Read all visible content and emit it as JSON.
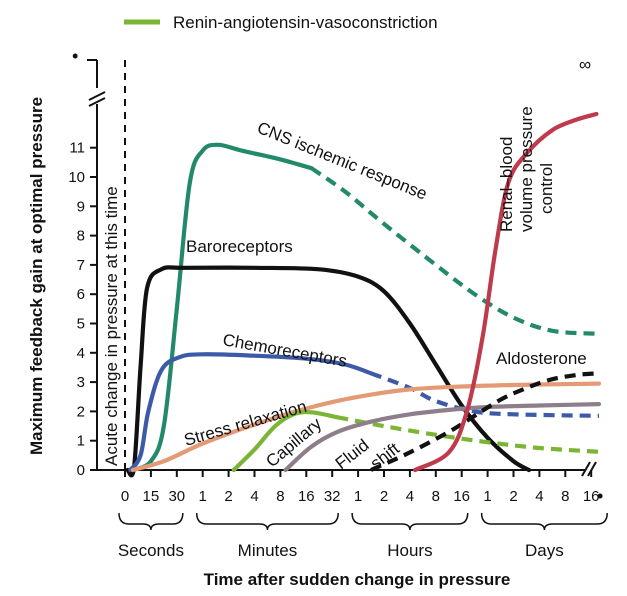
{
  "chart_data": {
    "type": "line",
    "ylabel": "Maximum feedback gain at optimal pressure",
    "xlabel": "Time after sudden change in pressure",
    "y_ticks": [
      "0",
      "1",
      "2",
      "3",
      "4",
      "5",
      "6",
      "7",
      "8",
      "9",
      "10",
      "11"
    ],
    "y_infinity_marker": "•",
    "x_infinity_marker": "•",
    "ylim": [
      0,
      11.5
    ],
    "x_tick_labels": [
      "0",
      "15",
      "30",
      "1",
      "2",
      "4",
      "8",
      "16",
      "32",
      "1",
      "2",
      "4",
      "8",
      "16",
      "1",
      "2",
      "4",
      "8",
      "16"
    ],
    "time_groups": [
      "Seconds",
      "Minutes",
      "Hours",
      "Days"
    ],
    "legend": [
      {
        "name": "Renin-angiotensin-vasoconstriction",
        "color": "#7ab535"
      }
    ],
    "annotations": {
      "acute": "Acute change in pressure at this time",
      "renal_infinity": "∞"
    },
    "series": [
      {
        "name": "CNS ischemic response",
        "color": "#24896a",
        "label": "CNS ischemic response",
        "solid": [
          [
            0.3,
            0
          ],
          [
            1.0,
            0.3
          ],
          [
            1.5,
            1.5
          ],
          [
            2.0,
            5.5
          ],
          [
            2.5,
            9.8
          ],
          [
            3.0,
            10.9
          ],
          [
            3.6,
            11.1
          ],
          [
            4.5,
            10.9
          ],
          [
            6.0,
            10.6
          ],
          [
            7.2,
            10.3
          ]
        ],
        "dashed": [
          [
            7.2,
            10.3
          ],
          [
            8.5,
            9.5
          ],
          [
            10.0,
            8.4
          ],
          [
            12.0,
            7.0
          ],
          [
            13.5,
            6.0
          ],
          [
            15.0,
            5.2
          ],
          [
            16.5,
            4.75
          ],
          [
            18.3,
            4.65
          ]
        ]
      },
      {
        "name": "Baroreceptors",
        "color": "#111111",
        "label": "Baroreceptors",
        "solid": [
          [
            0.1,
            0
          ],
          [
            0.35,
            0.1
          ],
          [
            0.6,
            3.5
          ],
          [
            0.85,
            6.2
          ],
          [
            1.4,
            6.85
          ],
          [
            2.3,
            6.9
          ],
          [
            5.0,
            6.9
          ],
          [
            7.5,
            6.85
          ],
          [
            9.0,
            6.6
          ],
          [
            10.0,
            6.1
          ],
          [
            11.0,
            5.0
          ],
          [
            12.0,
            3.6
          ],
          [
            13.0,
            2.2
          ],
          [
            14.0,
            1.1
          ],
          [
            15.0,
            0.3
          ],
          [
            15.6,
            0
          ]
        ]
      },
      {
        "name": "Chemoreceptors",
        "color": "#3d5aa8",
        "label": "Chemoreceptors",
        "solid": [
          [
            0.2,
            0
          ],
          [
            0.6,
            0.5
          ],
          [
            0.9,
            2.0
          ],
          [
            1.4,
            3.4
          ],
          [
            2.1,
            3.85
          ],
          [
            3.0,
            3.95
          ],
          [
            5.0,
            3.9
          ],
          [
            7.0,
            3.8
          ],
          [
            8.5,
            3.6
          ],
          [
            9.5,
            3.3
          ]
        ],
        "dashed": [
          [
            9.5,
            3.3
          ],
          [
            11.0,
            2.8
          ],
          [
            12.0,
            2.35
          ],
          [
            13.5,
            2.0
          ],
          [
            15.0,
            1.9
          ],
          [
            18.3,
            1.85
          ]
        ]
      },
      {
        "name": "Stress relaxation",
        "color": "#e39a75",
        "label": "Stress relaxation",
        "solid": [
          [
            0.3,
            0
          ],
          [
            1.5,
            0.3
          ],
          [
            3.0,
            0.9
          ],
          [
            5.0,
            1.55
          ],
          [
            7.0,
            2.1
          ],
          [
            9.0,
            2.5
          ],
          [
            11.0,
            2.75
          ],
          [
            13.0,
            2.85
          ],
          [
            15.0,
            2.9
          ],
          [
            18.3,
            2.95
          ]
        ]
      },
      {
        "name": "Capillary fluid shift",
        "color": "#7ab535",
        "label": "Capillary",
        "solid": [
          [
            4.2,
            0
          ],
          [
            5.0,
            0.7
          ],
          [
            5.8,
            1.5
          ],
          [
            6.5,
            1.9
          ],
          [
            7.2,
            1.97
          ],
          [
            8.2,
            1.8
          ]
        ],
        "dashed": [
          [
            8.2,
            1.8
          ],
          [
            10.0,
            1.5
          ],
          [
            12.0,
            1.2
          ],
          [
            14.0,
            0.95
          ],
          [
            16.0,
            0.75
          ],
          [
            18.3,
            0.62
          ]
        ]
      },
      {
        "name": "Fluid shift",
        "color": "#8e7d8a",
        "label": "Fluid",
        "solid": [
          [
            6.2,
            0
          ],
          [
            7.2,
            0.8
          ],
          [
            8.2,
            1.3
          ],
          [
            9.5,
            1.65
          ],
          [
            11.0,
            1.9
          ],
          [
            12.5,
            2.05
          ],
          [
            14.0,
            2.15
          ],
          [
            16.0,
            2.2
          ],
          [
            18.3,
            2.25
          ]
        ]
      },
      {
        "name": "Aldosterone",
        "color": "#111111",
        "label": "Aldosterone",
        "dashed": [
          [
            9.5,
            0
          ],
          [
            11.0,
            0.6
          ],
          [
            12.5,
            1.3
          ],
          [
            13.5,
            1.85
          ],
          [
            14.5,
            2.4
          ],
          [
            15.5,
            2.8
          ],
          [
            16.5,
            3.1
          ],
          [
            17.5,
            3.25
          ],
          [
            18.3,
            3.3
          ]
        ]
      },
      {
        "name": "Renal-blood volume pressure control",
        "color": "#bf3a4d",
        "label_lines": [
          "Renal–blood",
          "volume pressure",
          "control"
        ],
        "solid": [
          [
            11.2,
            0
          ],
          [
            12.5,
            0.6
          ],
          [
            13.2,
            2.0
          ],
          [
            13.8,
            4.5
          ],
          [
            14.3,
            7.5
          ],
          [
            14.8,
            9.8
          ],
          [
            15.5,
            10.8
          ],
          [
            16.5,
            11.6
          ],
          [
            17.4,
            11.95
          ],
          [
            18.2,
            12.15
          ]
        ]
      }
    ]
  },
  "labels": {
    "shift": "shift"
  }
}
